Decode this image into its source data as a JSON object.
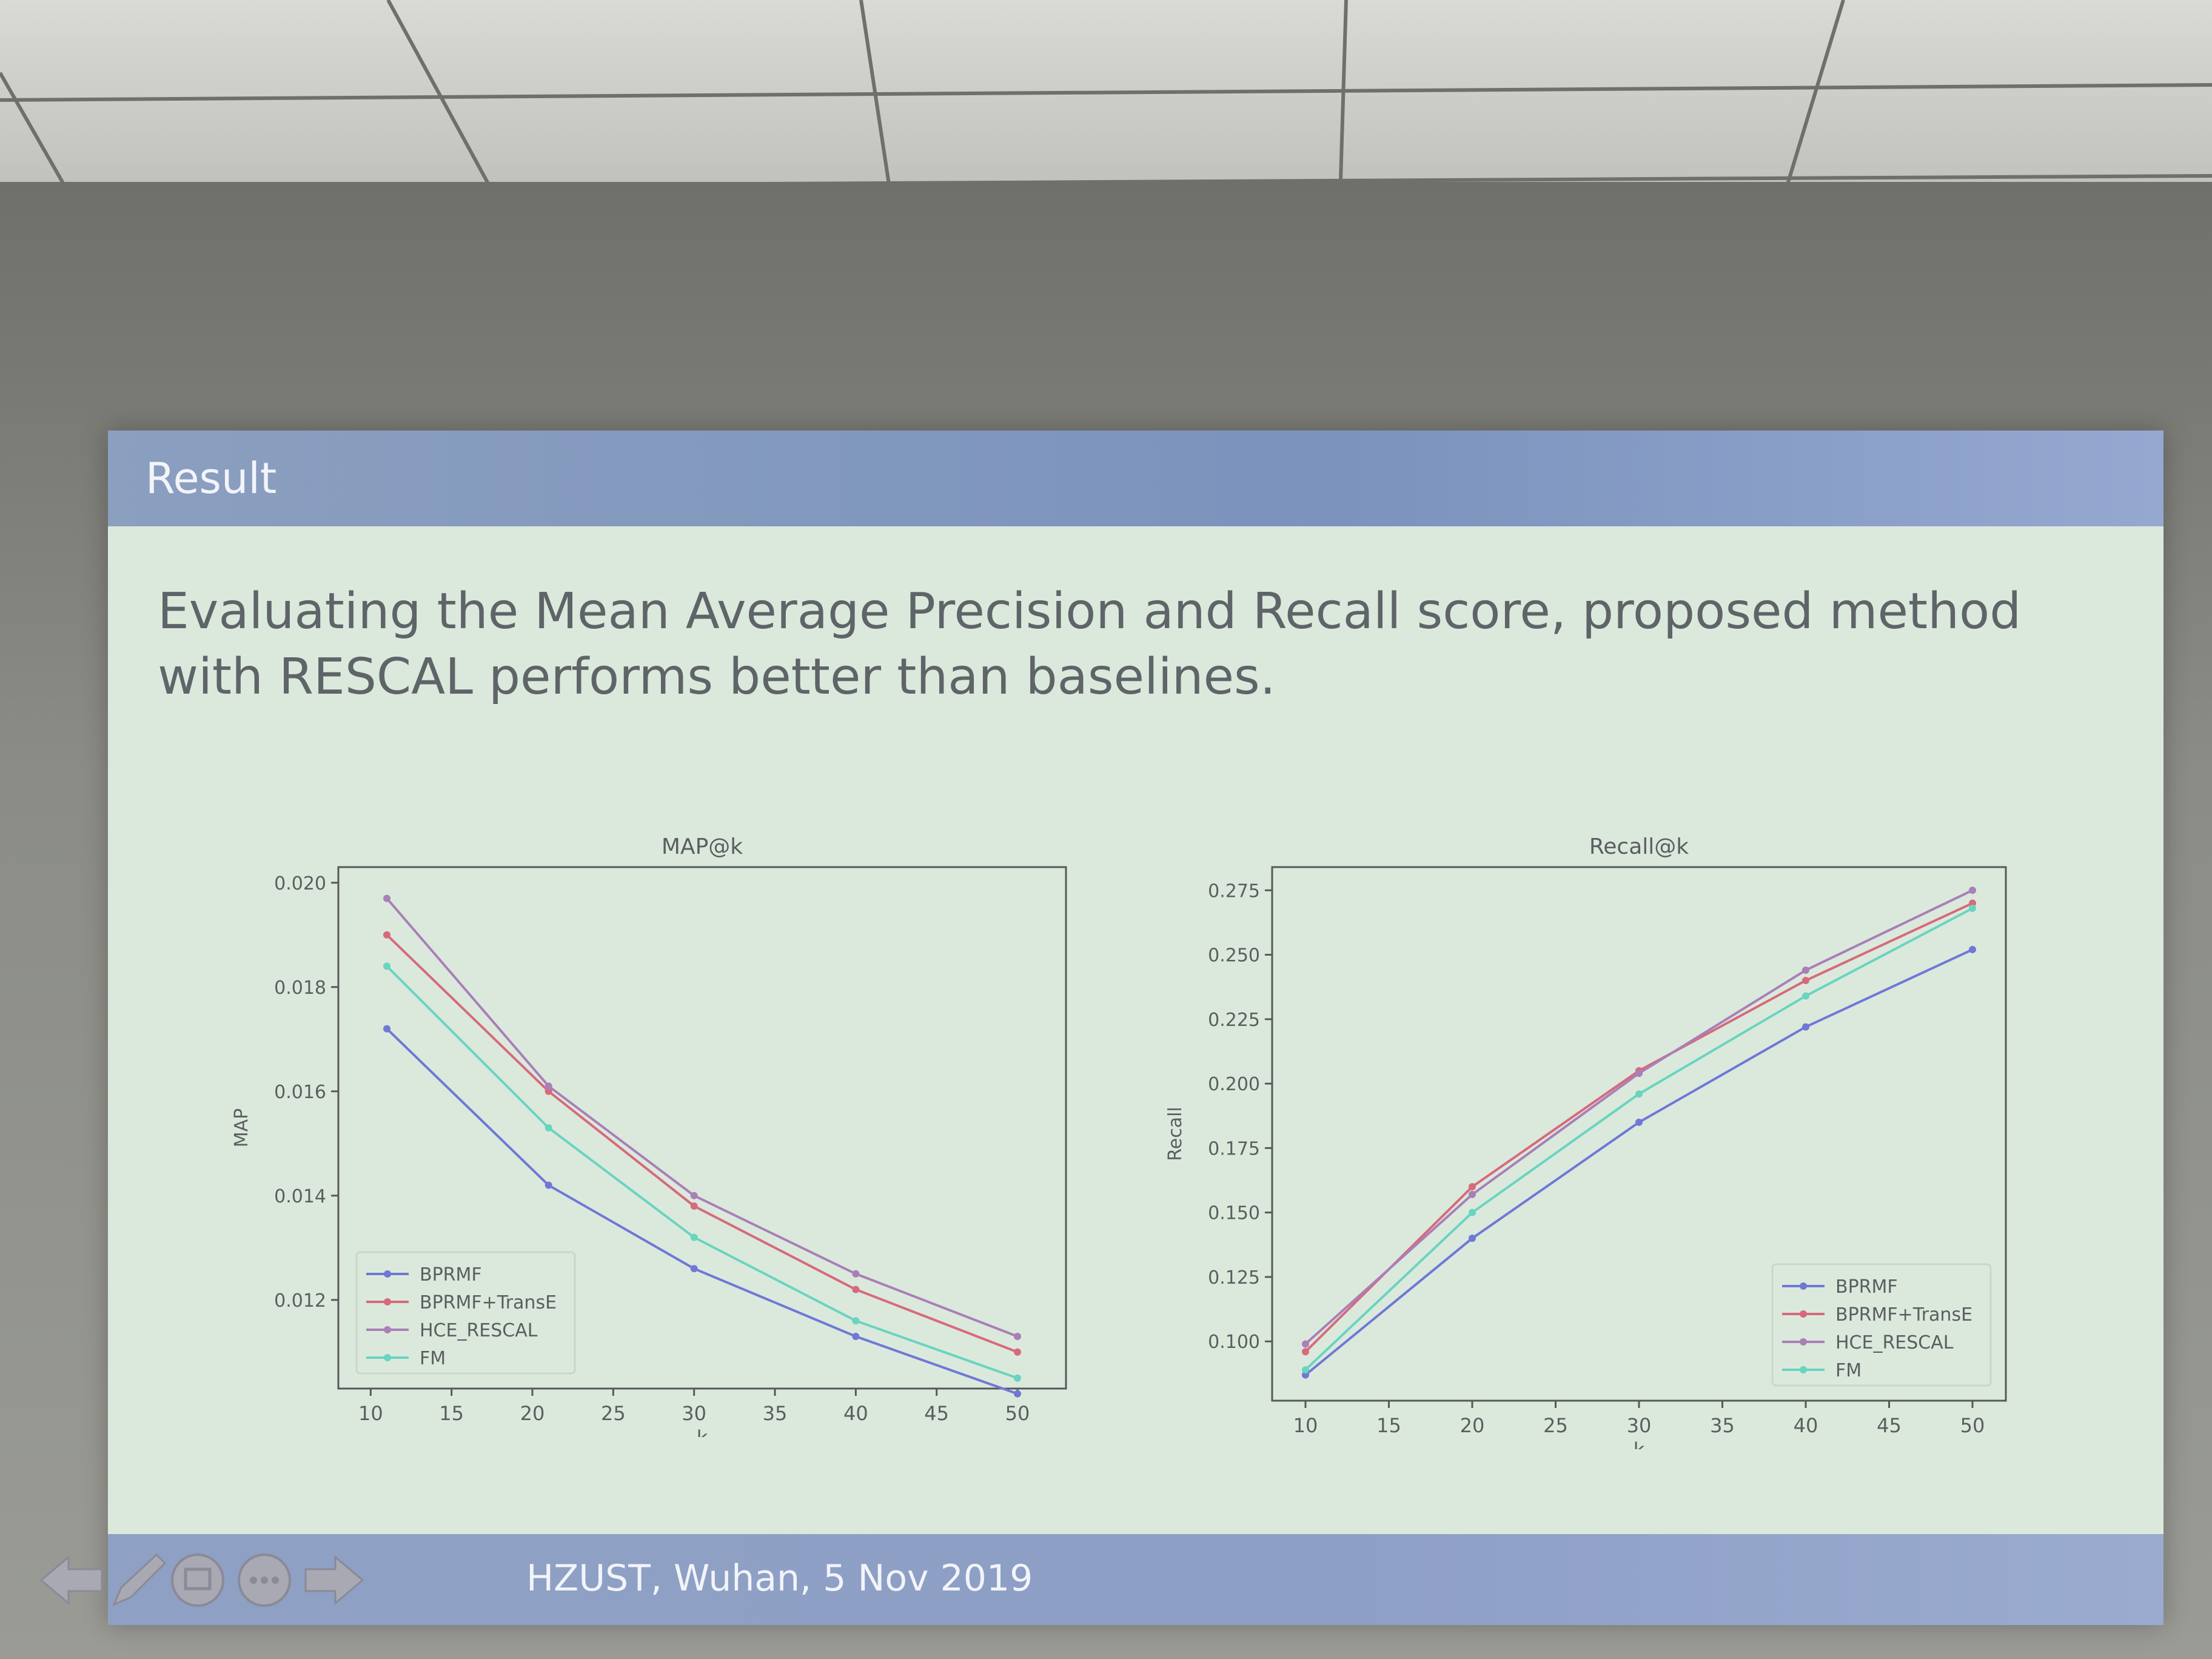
{
  "slide": {
    "title": "Result",
    "lead_line1": "Evaluating the Mean Average Precision and Recall score, proposed method",
    "lead_line2": "with RESCAL performs better than baselines.",
    "footer": "HZUST, Wuhan, 5 Nov 2019"
  },
  "colors": {
    "BPRMF": "#6f78d6",
    "BPRMF+TransE": "#d66a7c",
    "HCE_RESCAL": "#a97fb8",
    "FM": "#69d4c0"
  },
  "nav_icons": [
    "back-arrow-icon",
    "pen-icon",
    "screen-icon",
    "menu-dots-icon",
    "forward-arrow-icon"
  ],
  "chart_data": [
    {
      "type": "line",
      "title": "MAP@k",
      "xlabel": "k",
      "ylabel": "MAP",
      "xlim": [
        8,
        53
      ],
      "ylim": [
        0.0103,
        0.0203
      ],
      "xticks": [
        10,
        15,
        20,
        25,
        30,
        35,
        40,
        45,
        50
      ],
      "yticks": [
        0.012,
        0.014,
        0.016,
        0.018,
        0.02
      ],
      "ytick_labels": [
        "0.012",
        "0.014",
        "0.016",
        "0.018",
        "0.020"
      ],
      "legend_position": "lower-left",
      "grid": false,
      "x": [
        11,
        21,
        30,
        40,
        50
      ],
      "series": [
        {
          "name": "BPRMF",
          "values": [
            0.0172,
            0.0142,
            0.0126,
            0.0113,
            0.0102
          ]
        },
        {
          "name": "BPRMF+TransE",
          "values": [
            0.019,
            0.016,
            0.0138,
            0.0122,
            0.011
          ]
        },
        {
          "name": "HCE_RESCAL",
          "values": [
            0.0197,
            0.0161,
            0.014,
            0.0125,
            0.0113
          ]
        },
        {
          "name": "FM",
          "values": [
            0.0184,
            0.0153,
            0.0132,
            0.0116,
            0.0105
          ]
        }
      ]
    },
    {
      "type": "line",
      "title": "Recall@k",
      "xlabel": "k",
      "ylabel": "Recall",
      "xlim": [
        8,
        52
      ],
      "ylim": [
        0.077,
        0.284
      ],
      "xticks": [
        10,
        15,
        20,
        25,
        30,
        35,
        40,
        45,
        50
      ],
      "yticks": [
        0.1,
        0.125,
        0.15,
        0.175,
        0.2,
        0.225,
        0.25,
        0.275
      ],
      "ytick_labels": [
        "0.100",
        "0.125",
        "0.150",
        "0.175",
        "0.200",
        "0.225",
        "0.250",
        "0.275"
      ],
      "legend_position": "lower-right",
      "grid": false,
      "x": [
        10,
        20,
        30,
        40,
        50
      ],
      "series": [
        {
          "name": "BPRMF",
          "values": [
            0.087,
            0.14,
            0.185,
            0.222,
            0.252
          ]
        },
        {
          "name": "BPRMF+TransE",
          "values": [
            0.096,
            0.16,
            0.205,
            0.24,
            0.27
          ]
        },
        {
          "name": "HCE_RESCAL",
          "values": [
            0.099,
            0.157,
            0.204,
            0.244,
            0.275
          ]
        },
        {
          "name": "FM",
          "values": [
            0.089,
            0.15,
            0.196,
            0.234,
            0.268
          ]
        }
      ]
    }
  ]
}
